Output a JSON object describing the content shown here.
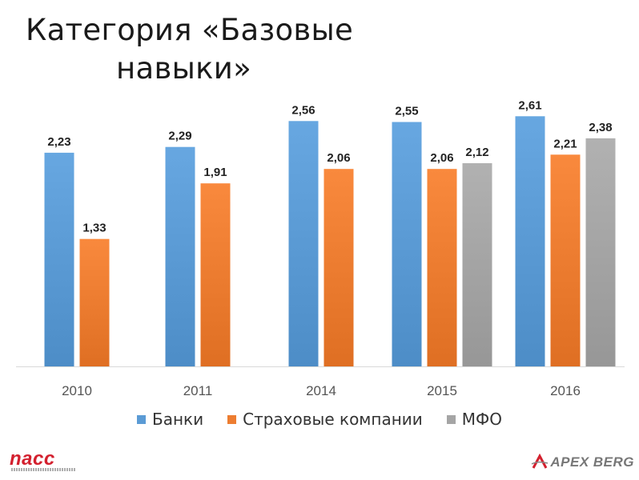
{
  "title": {
    "line1": "Категория «Базовые",
    "line2": "навыки»"
  },
  "chart_data": {
    "type": "bar",
    "categories": [
      "2010",
      "2011",
      "2014",
      "2015",
      "2016"
    ],
    "series": [
      {
        "name": "Банки",
        "color": "#5b9bd5",
        "values": [
          2.23,
          2.29,
          2.56,
          2.55,
          2.61
        ],
        "labels": [
          "2,23",
          "2,29",
          "2,56",
          "2,55",
          "2,61"
        ]
      },
      {
        "name": "Страховые компании",
        "color": "#ed7d31",
        "values": [
          1.33,
          1.91,
          2.06,
          2.06,
          2.21
        ],
        "labels": [
          "1,33",
          "1,91",
          "2,06",
          "2,06",
          "2,21"
        ]
      },
      {
        "name": "МФО",
        "color": "#a5a5a5",
        "values": [
          null,
          null,
          null,
          2.12,
          2.38
        ],
        "labels": [
          null,
          null,
          null,
          "2,12",
          "2,38"
        ]
      }
    ],
    "ylim": [
      0,
      3
    ],
    "grid": false,
    "legend_position": "bottom"
  },
  "logos": {
    "left": "nacc",
    "right": "APEX BERG"
  }
}
